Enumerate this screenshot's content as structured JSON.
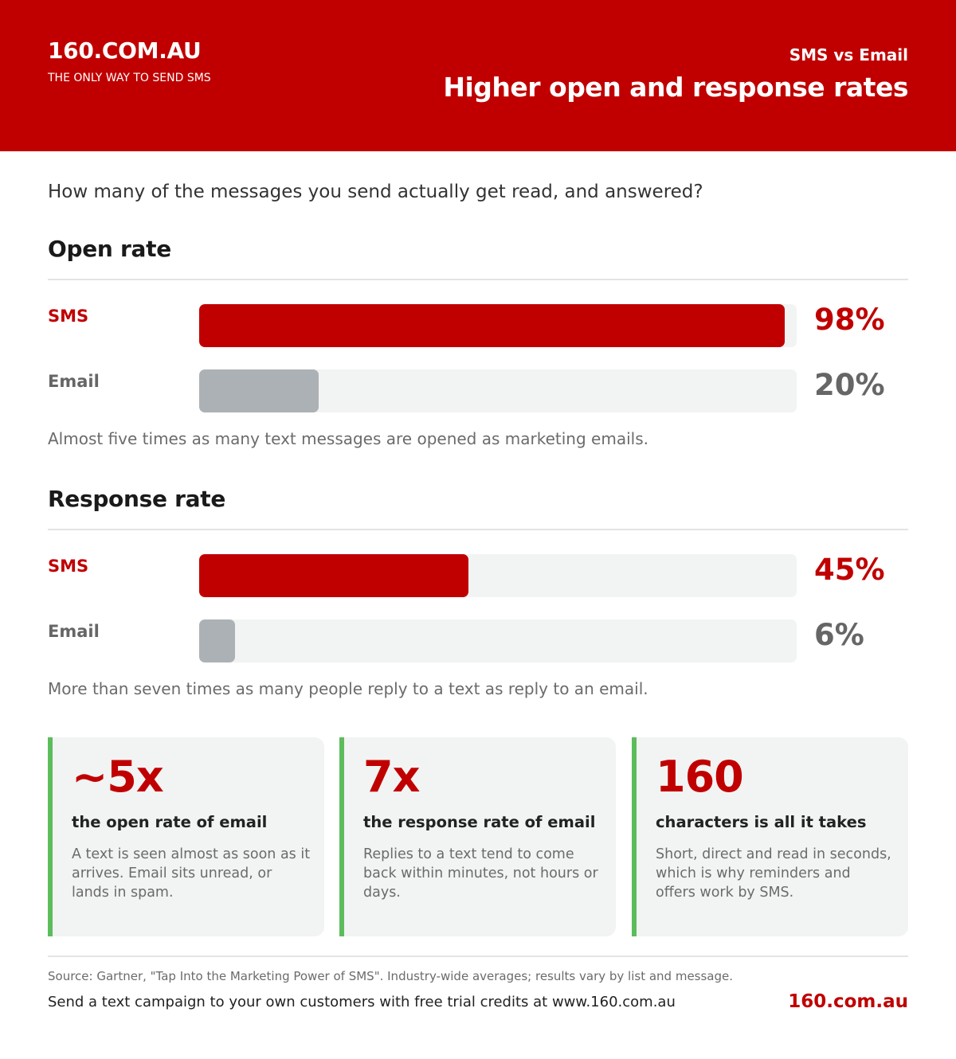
{
  "header": {
    "brand": "160.COM.AU",
    "tagline": "THE ONLY WAY TO SEND SMS",
    "kicker": "SMS vs Email",
    "headline": "Higher open and response rates"
  },
  "intro": "How many of the messages you send actually get read, and answered?",
  "chart_data": [
    {
      "type": "bar",
      "title": "Open rate",
      "categories": [
        "SMS",
        "Email"
      ],
      "values": [
        98,
        20
      ],
      "value_labels": [
        "98%",
        "20%"
      ],
      "unit": "%",
      "ylim": [
        0,
        100
      ],
      "caption": "Almost five times as many text messages are opened as marketing emails."
    },
    {
      "type": "bar",
      "title": "Response rate",
      "categories": [
        "SMS",
        "Email"
      ],
      "values": [
        45,
        6
      ],
      "value_labels": [
        "45%",
        "6%"
      ],
      "unit": "%",
      "ylim": [
        0,
        100
      ],
      "caption": "More than seven times as many people reply to a text as reply to an email."
    }
  ],
  "cards": [
    {
      "stat": "~5x",
      "title": "the open rate of email",
      "body": "A text is seen almost as soon as it arrives. Email sits unread, or lands in spam."
    },
    {
      "stat": "7x",
      "title": "the response rate of email",
      "body": "Replies to a text tend to come back within minutes, not hours or days."
    },
    {
      "stat": "160",
      "title": "characters is all it takes",
      "body": "Short, direct and read in seconds, which is why reminders and offers work by SMS."
    }
  ],
  "footer": {
    "source": "Source: Gartner, \"Tap Into the Marketing Power of SMS\". Industry-wide averages; results vary by list and message.",
    "cta": "Send a text campaign to your own customers with free trial credits at www.160.com.au",
    "brand": "160.com.au"
  },
  "colors": {
    "brand_red": "#c00000",
    "email_gray": "#acb1b5",
    "track": "#f2f3f3",
    "card_accent": "#5bbd5b"
  }
}
